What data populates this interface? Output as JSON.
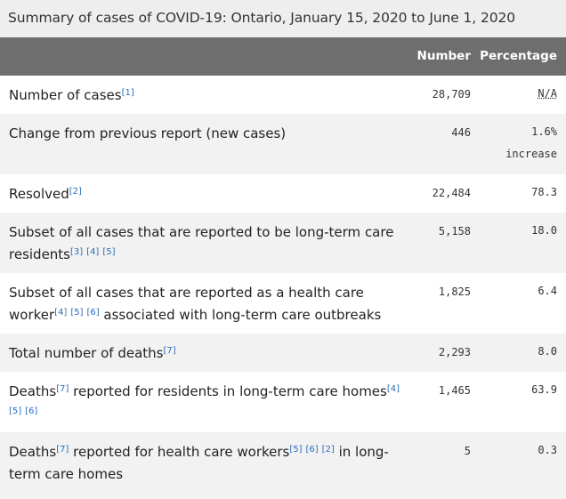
{
  "caption": "Summary of cases of COVID-19: Ontario, January 15, 2020 to June 1, 2020",
  "headers": {
    "number": "Number",
    "percentage": "Percentage"
  },
  "rows": [
    {
      "label_parts": [
        "Number of cases"
      ],
      "refs": [
        "[1]"
      ],
      "number": "28,709",
      "percentage": "N/A",
      "percentage_extra": ""
    },
    {
      "label": "Change from previous report (new cases)",
      "number": "446",
      "percentage": "1.6%",
      "percentage_extra": "increase"
    },
    {
      "label": "Resolved",
      "refs": [
        "[2]"
      ],
      "number": "22,484",
      "percentage": "78.3"
    },
    {
      "label": "Subset of all cases that are reported to be long-term care residents",
      "refs": [
        "[3]",
        "[4]",
        "[5]"
      ],
      "number": "5,158",
      "percentage": "18.0"
    },
    {
      "label_a": "Subset of all cases that are reported as a health care worker",
      "refs": [
        "[4]",
        "[5]",
        "[6]"
      ],
      "label_b": " associated with long-term care outbreaks",
      "number": "1,825",
      "percentage": "6.4"
    },
    {
      "label": "Total number of deaths",
      "refs": [
        "[7]"
      ],
      "number": "2,293",
      "percentage": "8.0"
    },
    {
      "label_a": "Deaths",
      "refs_a": [
        "[7]"
      ],
      "label_b": " reported for residents in long-term care homes",
      "refs_b": [
        "[4]",
        "[5]",
        "[6]"
      ],
      "number": "1,465",
      "percentage": "63.9"
    },
    {
      "label_a": "Deaths",
      "refs_a": [
        "[7]"
      ],
      "label_b": " reported for health care workers",
      "refs_b": [
        "[5]",
        "[6]",
        "[2]"
      ],
      "label_c": " in long-term care homes",
      "number": "5",
      "percentage": "0.3"
    }
  ]
}
